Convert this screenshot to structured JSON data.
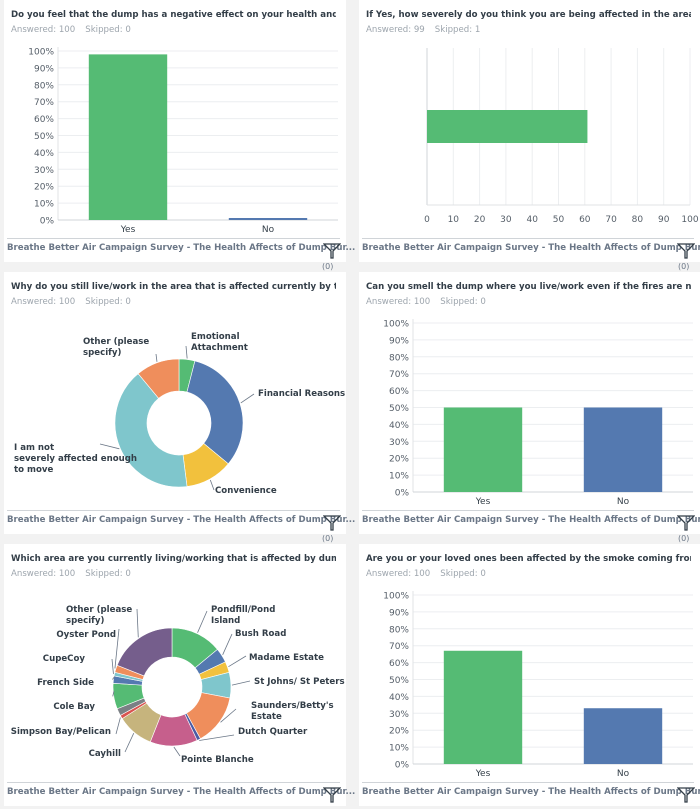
{
  "footer": {
    "survey_title": "Breathe Better Air Campaign Survey - The Health Affects of Dump Bur...",
    "filter_count": "(0)",
    "filter_icon": "funnel-icon"
  },
  "colors": {
    "green": "#55bb74",
    "blue": "#5479b0",
    "yellow": "#f2c13d",
    "teal": "#7fc6cc",
    "orange": "#ef8e5c",
    "pink": "#c65f8c",
    "khaki": "#c6b47d",
    "purple": "#755e8c",
    "red": "#d9534f",
    "gray": "#7b8085",
    "darkblue": "#4a5aa3"
  },
  "panels": [
    {
      "title": "Do you feel that the dump has a negative effect on your health and we...",
      "answered": "Answered: 100",
      "skipped": "Skipped: 0"
    },
    {
      "title": "If Yes, how severely do you think you are being affected in the area th...",
      "answered": "Answered: 99",
      "skipped": "Skipped: 1"
    },
    {
      "title": "Why do you still live/work in the area that is affected currently by the ...",
      "answered": "Answered: 100",
      "skipped": "Skipped: 0"
    },
    {
      "title": "Can you smell the dump where you live/work even if the fires are not ...",
      "answered": "Answered: 100",
      "skipped": "Skipped: 0"
    },
    {
      "title": "Which area are you currently living/working that is affected by dump ...",
      "answered": "Answered: 100",
      "skipped": "Skipped: 0"
    },
    {
      "title": "Are you or your loved ones been affected by the smoke coming from t...",
      "answered": "Answered: 100",
      "skipped": "Skipped: 0"
    }
  ],
  "chart_data": [
    {
      "type": "bar",
      "title": "Do you feel that the dump has a negative effect on your health and we...",
      "categories": [
        "Yes",
        "No"
      ],
      "values": [
        98,
        1
      ],
      "colors": [
        "green",
        "blue"
      ],
      "ylim": [
        0,
        100
      ],
      "yticks": [
        "0%",
        "10%",
        "20%",
        "30%",
        "40%",
        "50%",
        "60%",
        "70%",
        "80%",
        "90%",
        "100%"
      ],
      "grid": true
    },
    {
      "type": "bar",
      "orientation": "horizontal",
      "title": "If Yes, how severely do you think you are being affected in the area th...",
      "categories": [
        ""
      ],
      "values": [
        61
      ],
      "colors": [
        "green"
      ],
      "xlim": [
        0,
        100
      ],
      "xticks": [
        "0",
        "10",
        "20",
        "30",
        "40",
        "50",
        "60",
        "70",
        "80",
        "90",
        "100"
      ],
      "grid": true
    },
    {
      "type": "pie",
      "donut": true,
      "title": "Why do you still live/work in the area that is affected currently by the ...",
      "slices": [
        {
          "label": "Emotional Attachment",
          "value": 4,
          "color": "green"
        },
        {
          "label": "Financial Reasons",
          "value": 32,
          "color": "blue"
        },
        {
          "label": "Convenience",
          "value": 12,
          "color": "yellow"
        },
        {
          "label": "I am not severely affected enough to move",
          "value": 41,
          "color": "teal"
        },
        {
          "label": "Other (please specify)",
          "value": 11,
          "color": "orange"
        }
      ]
    },
    {
      "type": "bar",
      "title": "Can you smell the dump where you live/work even if the fires are not ...",
      "categories": [
        "Yes",
        "No"
      ],
      "values": [
        50,
        50
      ],
      "colors": [
        "green",
        "blue"
      ],
      "ylim": [
        0,
        100
      ],
      "yticks": [
        "0%",
        "10%",
        "20%",
        "30%",
        "40%",
        "50%",
        "60%",
        "70%",
        "80%",
        "90%",
        "100%"
      ],
      "grid": true
    },
    {
      "type": "pie",
      "donut": true,
      "title": "Which area are you currently living/working that is affected by dump ...",
      "slices": [
        {
          "label": "Pondfill/Pond Island",
          "value": 14,
          "color": "green"
        },
        {
          "label": "Bush Road",
          "value": 4,
          "color": "blue"
        },
        {
          "label": "Madame Estate",
          "value": 3,
          "color": "yellow"
        },
        {
          "label": "St Johns/ St Peters",
          "value": 7,
          "color": "teal"
        },
        {
          "label": "Saunders/Betty's Estate",
          "value": 14,
          "color": "orange"
        },
        {
          "label": "Dutch Quarter",
          "value": 1,
          "color": "darkblue"
        },
        {
          "label": "Pointe Blanche",
          "value": 13,
          "color": "pink"
        },
        {
          "label": "Cayhill",
          "value": 10,
          "color": "khaki"
        },
        {
          "label": "Simpson Bay/Pelican",
          "value": 1,
          "color": "red"
        },
        {
          "label": "",
          "value": 2,
          "color": "gray"
        },
        {
          "label": "Cole Bay",
          "value": 7,
          "color": "green"
        },
        {
          "label": "French Side",
          "value": 2,
          "color": "blue"
        },
        {
          "label": "CupeCoy",
          "value": 1,
          "color": "teal"
        },
        {
          "label": "Oyster Pond",
          "value": 2,
          "color": "orange"
        },
        {
          "label": "Other (please specify)",
          "value": 19,
          "color": "purple"
        }
      ]
    },
    {
      "type": "bar",
      "title": "Are you or your loved ones been affected by the smoke coming from t...",
      "categories": [
        "Yes",
        "No"
      ],
      "values": [
        67,
        33
      ],
      "colors": [
        "green",
        "blue"
      ],
      "ylim": [
        0,
        100
      ],
      "yticks": [
        "0%",
        "10%",
        "20%",
        "30%",
        "40%",
        "50%",
        "60%",
        "70%",
        "80%",
        "90%",
        "100%"
      ],
      "grid": true
    }
  ]
}
